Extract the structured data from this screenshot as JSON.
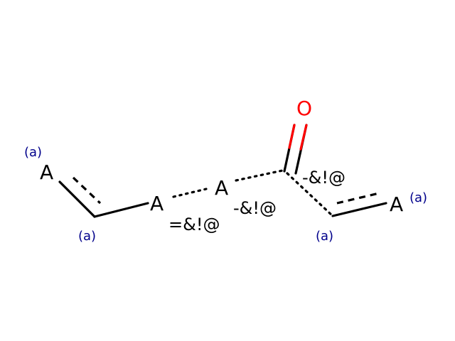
{
  "molecule": {
    "atoms": {
      "a1": "A",
      "a2": "A",
      "a3": "A",
      "a4": "A",
      "oxygen": "O"
    },
    "annotations": {
      "top_left": "(a)",
      "bottom_left": "(a)",
      "right_mid": "(a)",
      "right_end": "(a)"
    },
    "bond_labels": {
      "double_any": "=&!@",
      "single_any_mid": "-&!@",
      "single_any_right": "-&!@"
    },
    "colors": {
      "atom": "#000000",
      "oxygen": "#ff0000",
      "annotation": "#00008b"
    }
  }
}
